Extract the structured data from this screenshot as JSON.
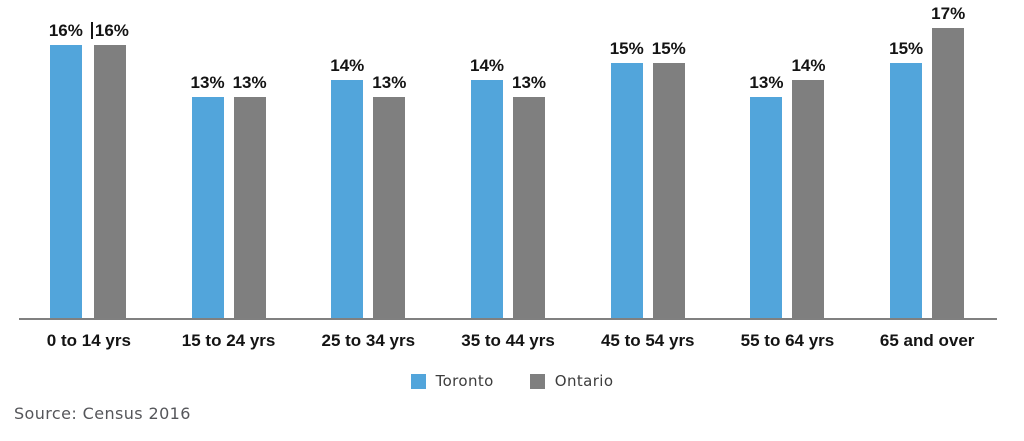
{
  "chart_data": {
    "type": "bar",
    "title": "",
    "categories": [
      "0 to 14 yrs",
      "15 to 24 yrs",
      "25 to 34 yrs",
      "35 to 44 yrs",
      "45 to 54 yrs",
      "55 to 64 yrs",
      "65 and over"
    ],
    "series": [
      {
        "name": "Toronto",
        "color": "#52A5DB",
        "values": [
          16,
          13,
          14,
          14,
          15,
          13,
          15
        ]
      },
      {
        "name": "Ontario",
        "color": "#7F7F7F",
        "values": [
          16,
          13,
          13,
          13,
          15,
          14,
          17
        ]
      }
    ],
    "value_suffix": "%",
    "value_labels": [
      [
        "16%",
        "16%"
      ],
      [
        "13%",
        "13%"
      ],
      [
        "14%",
        "13%"
      ],
      [
        "14%",
        "13%"
      ],
      [
        "15%",
        "15%"
      ],
      [
        "13%",
        "14%"
      ],
      [
        "15%",
        "17%"
      ]
    ],
    "y_axis_visible": false,
    "grid": false,
    "legend_position": "bottom",
    "overlap_tick": {
      "category_index": 0,
      "series_index": 1
    }
  },
  "legend": {
    "items": [
      {
        "label": "Toronto",
        "color": "#52A5DB"
      },
      {
        "label": "Ontario",
        "color": "#7F7F7F"
      }
    ]
  },
  "source_note": "Source: Census 2016",
  "colors": {
    "axis_line": "#808080",
    "value_label_text": "#141414",
    "category_label_text": "#141414",
    "legend_text": "#3D3D3D",
    "source_text": "#55565A",
    "background": "#FFFFFF"
  }
}
